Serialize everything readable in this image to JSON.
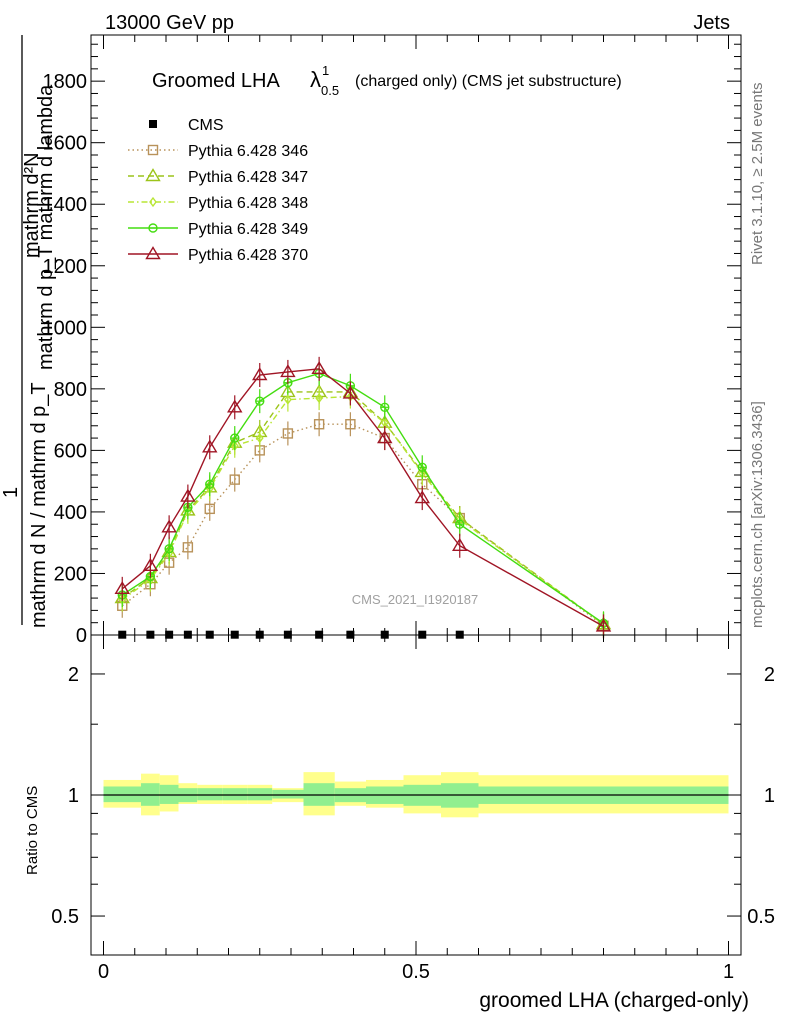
{
  "header": {
    "left": "13000 GeV pp",
    "right": "Jets"
  },
  "side_labels": {
    "rivet": "Rivet 3.1.10, ≥ 2.5M events",
    "mcplots": "mcplots.cern.ch [arXiv:1306.3436]"
  },
  "main": {
    "title": "Groomed LHA",
    "title_symbol": "λ",
    "title_sup": "1",
    "title_sub": "0.5",
    "title_suffix": "(charged only) (CMS jet substructure)",
    "watermark": "CMS_2021_I1920187",
    "ylabel_numerator": "mathrm d²N",
    "ylabel_numerator_line2": "mathrm d p_T mathrm d lambda",
    "ylabel_one": "1",
    "ylabel_denominator": "mathrm d N / mathrm d p_T",
    "yticks": [
      "0",
      "200",
      "400",
      "600",
      "800",
      "1000",
      "1200",
      "1400",
      "1600",
      "1800"
    ]
  },
  "ratio": {
    "ylabel": "Ratio to CMS",
    "yticks": [
      "0.5",
      "1",
      "2"
    ],
    "xticks": [
      "0",
      "0.5",
      "1"
    ],
    "xlabel": "groomed LHA (charged-only)"
  },
  "chart_data": {
    "type": "line",
    "title": "Groomed LHA λ¹₀.₅ (charged only) (CMS jet substructure)",
    "xlabel": "groomed LHA (charged-only)",
    "ylabel": "1 / (mathrm d N / mathrm d p_T) · mathrm d²N / (mathrm d p_T mathrm d lambda)",
    "xlim": [
      -0.02,
      1.02
    ],
    "ylim": [
      0,
      1950
    ],
    "x": [
      0.03,
      0.075,
      0.105,
      0.135,
      0.17,
      0.21,
      0.25,
      0.295,
      0.345,
      0.395,
      0.45,
      0.51,
      0.57,
      0.8
    ],
    "series": [
      {
        "name": "CMS",
        "color": "#000000",
        "marker": "square-filled",
        "line": "none",
        "values": [
          1,
          1,
          1,
          1,
          1,
          1,
          1,
          1,
          1,
          1,
          1,
          1,
          1,
          null
        ]
      },
      {
        "name": "Pythia 6.428 346",
        "color": "#b8925a",
        "marker": "square-open",
        "line": "dotted",
        "values": [
          95,
          165,
          235,
          285,
          410,
          505,
          600,
          655,
          685,
          685,
          640,
          490,
          380,
          30
        ]
      },
      {
        "name": "Pythia 6.428 347",
        "color": "#9cc41a",
        "marker": "triangle-open",
        "line": "dashed",
        "values": [
          120,
          185,
          270,
          405,
          480,
          625,
          660,
          790,
          790,
          790,
          690,
          530,
          380,
          35
        ]
      },
      {
        "name": "Pythia 6.428 348",
        "color": "#b8e635",
        "marker": "diamond-open",
        "line": "dashdot",
        "values": [
          115,
          180,
          265,
          400,
          475,
          615,
          640,
          765,
          770,
          775,
          690,
          525,
          375,
          35
        ]
      },
      {
        "name": "Pythia 6.428 349",
        "color": "#44dd10",
        "marker": "circle-cross",
        "line": "solid",
        "values": [
          130,
          190,
          280,
          415,
          490,
          640,
          760,
          820,
          850,
          810,
          740,
          545,
          360,
          38
        ]
      },
      {
        "name": "Pythia 6.428 370",
        "color": "#a01525",
        "marker": "triangle-open",
        "line": "solid",
        "values": [
          150,
          225,
          350,
          450,
          610,
          740,
          845,
          855,
          865,
          785,
          640,
          445,
          290,
          28
        ]
      }
    ],
    "ratio_bands": {
      "ylim": [
        0.4,
        2.5
      ],
      "scale": "log",
      "edges": [
        0.0,
        0.06,
        0.09,
        0.12,
        0.15,
        0.19,
        0.23,
        0.27,
        0.32,
        0.37,
        0.42,
        0.48,
        0.54,
        0.6,
        1.0
      ],
      "inner": [
        [
          0.96,
          1.05
        ],
        [
          0.94,
          1.07
        ],
        [
          0.95,
          1.06
        ],
        [
          0.96,
          1.04
        ],
        [
          0.97,
          1.04
        ],
        [
          0.97,
          1.04
        ],
        [
          0.97,
          1.04
        ],
        [
          0.98,
          1.03
        ],
        [
          0.94,
          1.07
        ],
        [
          0.96,
          1.04
        ],
        [
          0.95,
          1.05
        ],
        [
          0.94,
          1.06
        ],
        [
          0.93,
          1.07
        ],
        [
          0.95,
          1.05
        ]
      ],
      "outer": [
        [
          0.93,
          1.09
        ],
        [
          0.89,
          1.13
        ],
        [
          0.91,
          1.12
        ],
        [
          0.95,
          1.07
        ],
        [
          0.95,
          1.06
        ],
        [
          0.95,
          1.06
        ],
        [
          0.95,
          1.06
        ],
        [
          0.96,
          1.04
        ],
        [
          0.89,
          1.14
        ],
        [
          0.94,
          1.08
        ],
        [
          0.93,
          1.09
        ],
        [
          0.9,
          1.12
        ],
        [
          0.88,
          1.14
        ],
        [
          0.9,
          1.12
        ]
      ]
    }
  }
}
